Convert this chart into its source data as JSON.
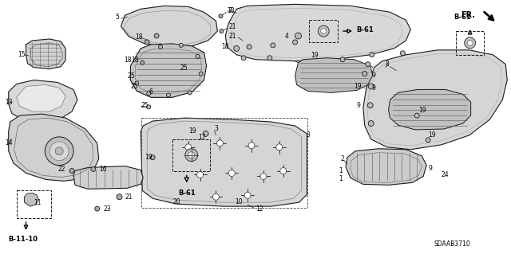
{
  "background_color": "#ffffff",
  "line_color": "#1a1a1a",
  "fig_width": 6.4,
  "fig_height": 3.19,
  "dpi": 100,
  "diagram_code": "SDAAB3710",
  "fr_label": "FR.",
  "b61_label": "B-61",
  "b1110_label": "B-11-10",
  "part_fill": "#e8e8e8",
  "part_fill_dark": "#c8c8c8",
  "part_edge": "#1a1a1a",
  "hatch_color": "#555555",
  "label_fontsize": 5.5,
  "bold_fontsize": 6.0
}
